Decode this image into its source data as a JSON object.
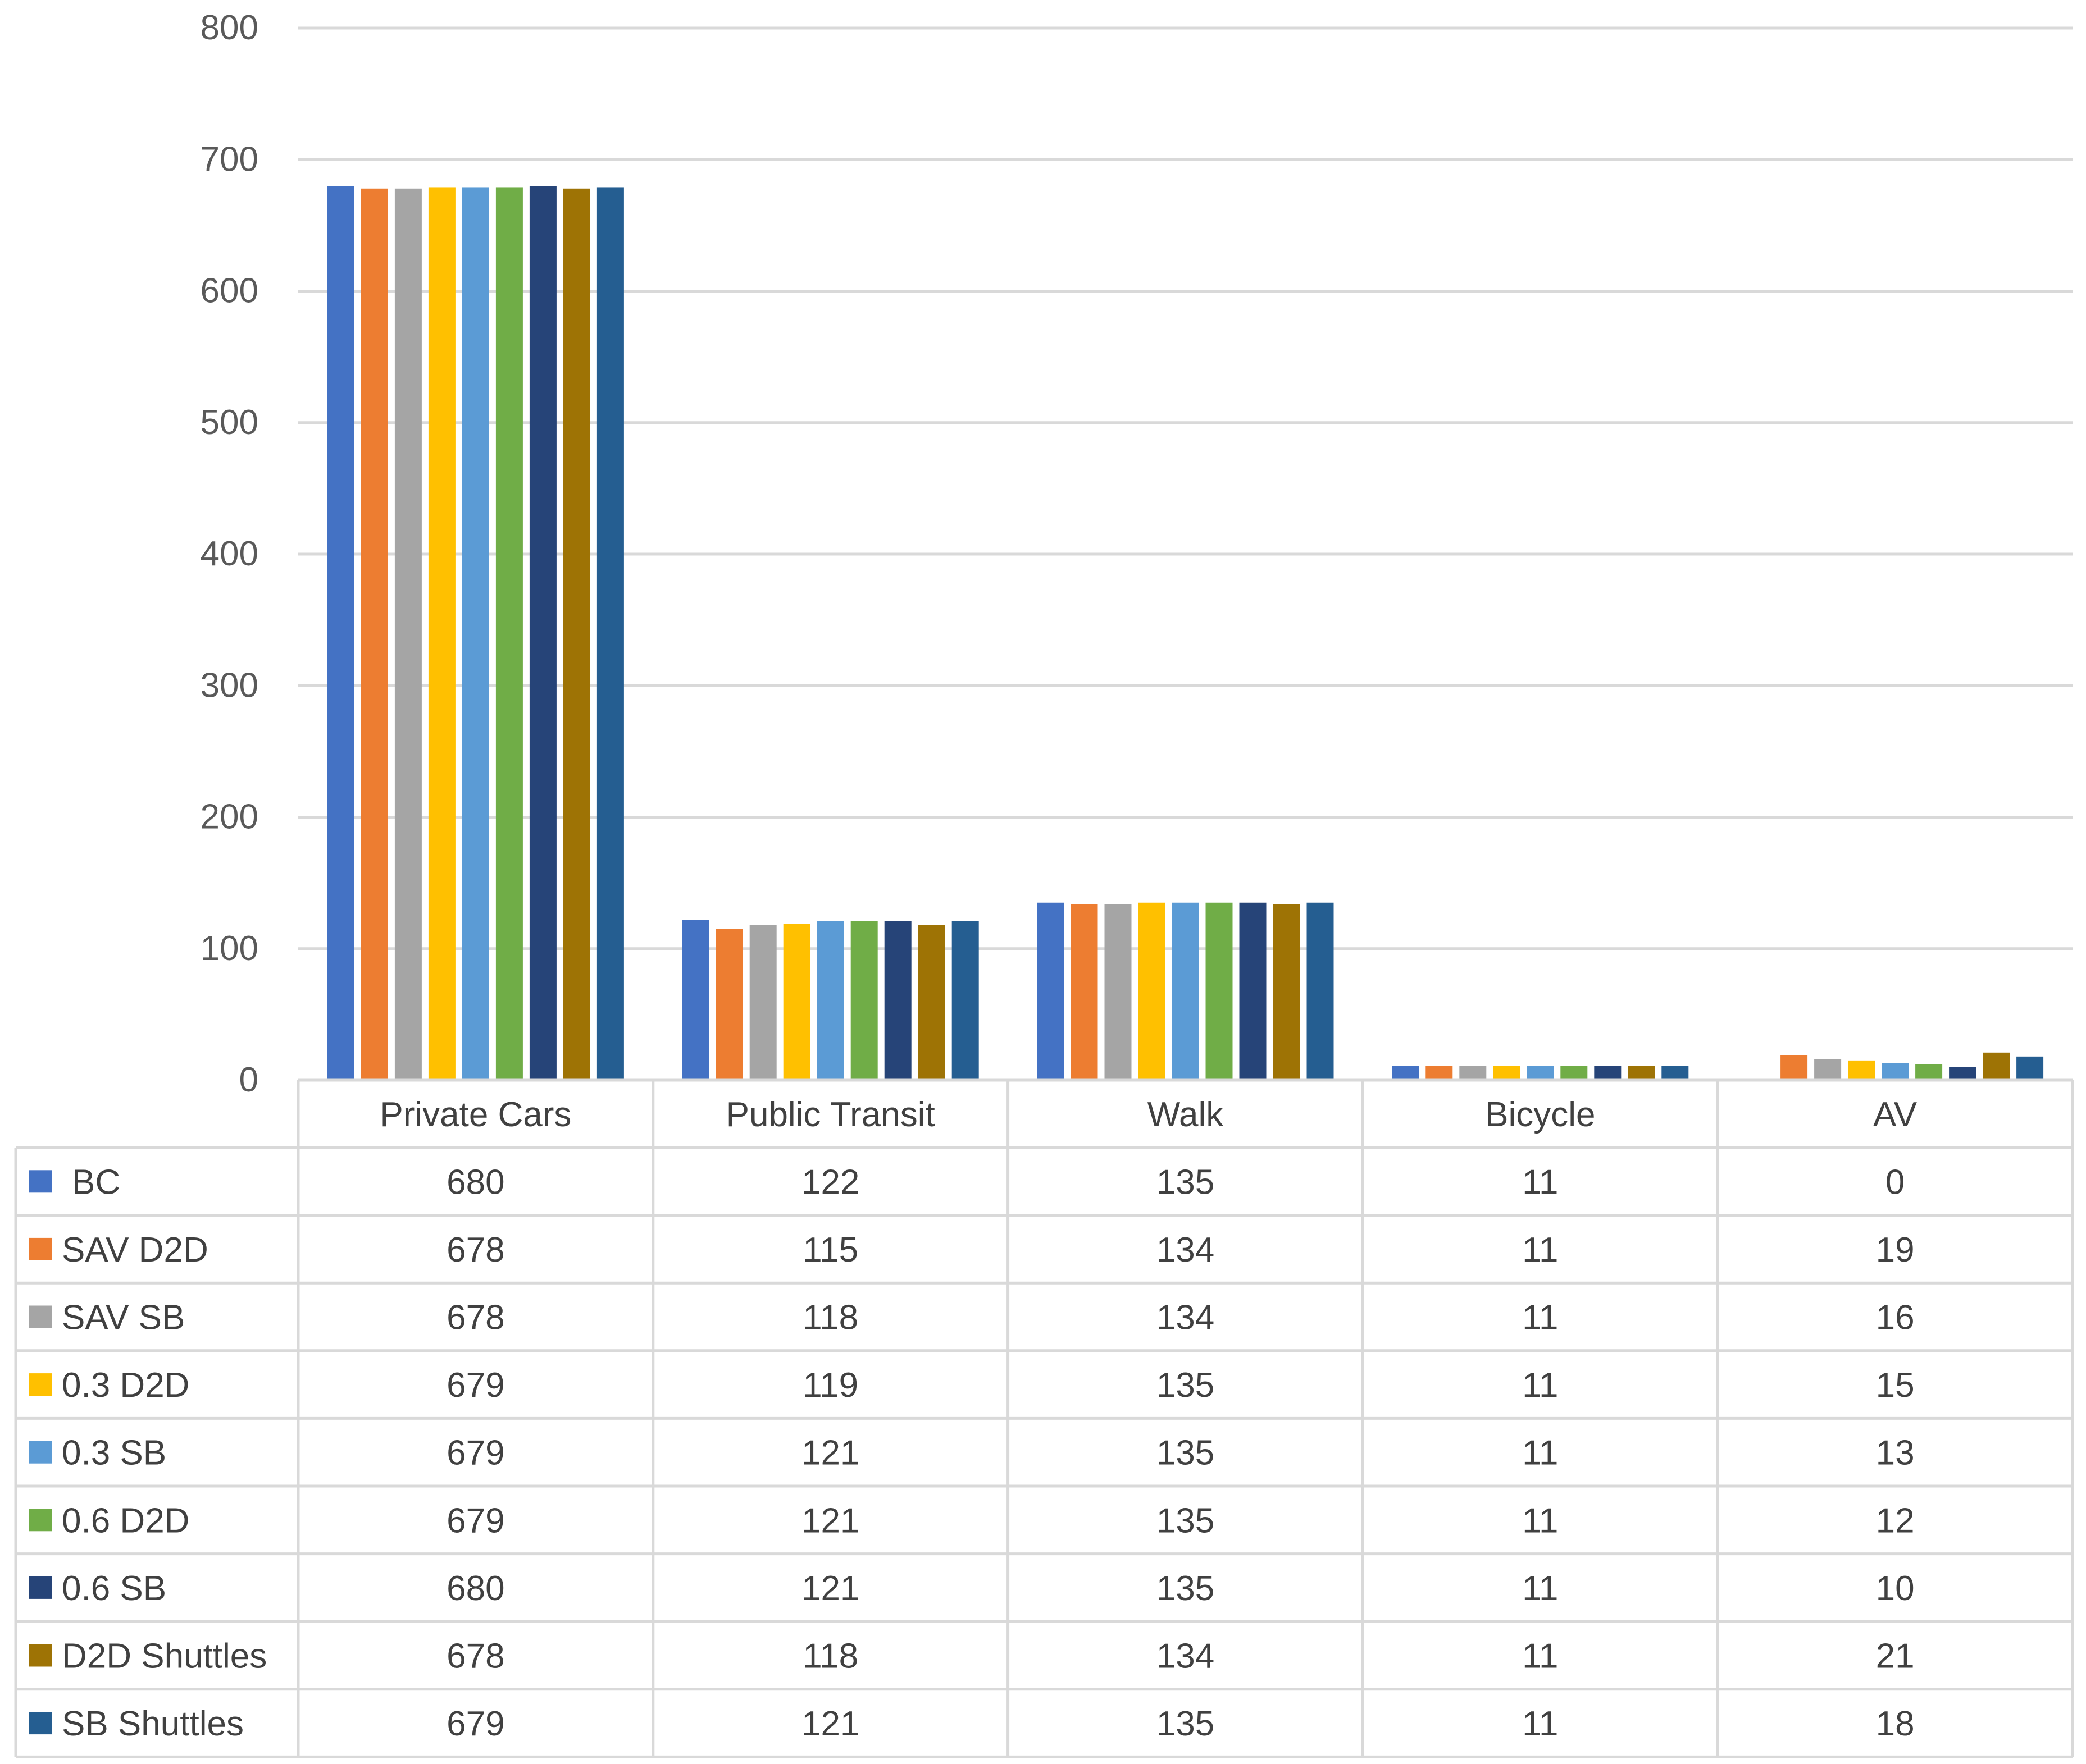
{
  "chart_data": {
    "type": "bar",
    "title": "",
    "xlabel": "",
    "ylabel": "",
    "ylim": [
      0,
      800
    ],
    "yticks": [
      0,
      100,
      200,
      300,
      400,
      500,
      600,
      700,
      800
    ],
    "grid": true,
    "legend": "data-table-left",
    "categories": [
      "Private Cars",
      "Public Transit",
      "Walk",
      "Bicycle",
      "AV"
    ],
    "series": [
      {
        "name": "BC",
        "color": "#4472C4",
        "values": [
          680,
          122,
          135,
          11,
          0
        ]
      },
      {
        "name": "SAV D2D",
        "color": "#ED7D31",
        "values": [
          678,
          115,
          134,
          11,
          19
        ]
      },
      {
        "name": "SAV SB",
        "color": "#A5A5A5",
        "values": [
          678,
          118,
          134,
          11,
          16
        ]
      },
      {
        "name": "0.3 D2D",
        "color": "#FFC000",
        "values": [
          679,
          119,
          135,
          11,
          15
        ]
      },
      {
        "name": "0.3 SB",
        "color": "#5B9BD5",
        "values": [
          679,
          121,
          135,
          11,
          13
        ]
      },
      {
        "name": "0.6 D2D",
        "color": "#70AD47",
        "values": [
          679,
          121,
          135,
          11,
          12
        ]
      },
      {
        "name": "0.6 SB",
        "color": "#264478",
        "values": [
          680,
          121,
          135,
          11,
          10
        ]
      },
      {
        "name": "D2D Shuttles",
        "color": "#9E7305",
        "values": [
          678,
          118,
          134,
          11,
          21
        ]
      },
      {
        "name": "SB Shuttles",
        "color": "#255E91",
        "values": [
          679,
          121,
          135,
          11,
          18
        ]
      }
    ]
  }
}
